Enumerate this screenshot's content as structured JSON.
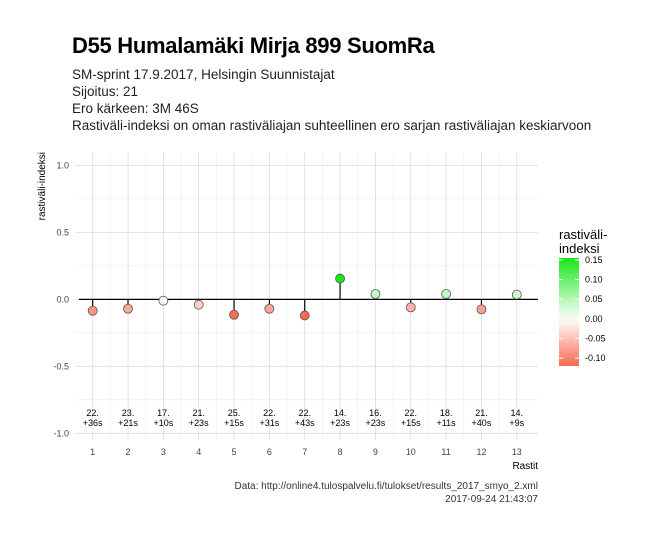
{
  "header": {
    "title": "D55 Humalamäki Mirja 899 SuomRa",
    "subtitle_lines": [
      "SM-sprint 17.9.2017, Helsingin Suunnistajat",
      "Sijoitus: 21",
      "Ero kärkeen: 3M 46S",
      "Rastiväli-indeksi on oman rastiväliajan suhteellinen ero sarjan rastiväliajan keskiarvoon"
    ]
  },
  "caption": {
    "source": "Data: http://online4.tulospalvelu.fi/tulokset/results_2017_smyo_2.xml",
    "timestamp": "2017-09-24 21:43:07"
  },
  "chart_data": {
    "type": "scatter",
    "xlabel": "Rastit",
    "ylabel": "rastiväli-indeksi",
    "x": [
      1,
      2,
      3,
      4,
      5,
      6,
      7,
      8,
      9,
      10,
      11,
      12,
      13
    ],
    "values": [
      -0.085,
      -0.07,
      -0.01,
      -0.04,
      -0.115,
      -0.07,
      -0.12,
      0.155,
      0.04,
      -0.06,
      0.04,
      -0.075,
      0.035
    ],
    "annotations": [
      [
        "22.",
        "+36s"
      ],
      [
        "23.",
        "+21s"
      ],
      [
        "17.",
        "+10s"
      ],
      [
        "21.",
        "+23s"
      ],
      [
        "25.",
        "+15s"
      ],
      [
        "22.",
        "+31s"
      ],
      [
        "22.",
        "+43s"
      ],
      [
        "14.",
        "+23s"
      ],
      [
        "16.",
        "+23s"
      ],
      [
        "22.",
        "+15s"
      ],
      [
        "18.",
        "+11s"
      ],
      [
        "21.",
        "+40s"
      ],
      [
        "14.",
        "+9s"
      ]
    ],
    "ylim": [
      -1.05,
      1.1
    ],
    "yticks": [
      -1.0,
      -0.5,
      0.0,
      0.5,
      1.0
    ],
    "ytick_labels": [
      "-1.0",
      "-0.5",
      "0.0",
      "0.5",
      "1.0"
    ],
    "xlim": [
      0.5,
      13.6
    ],
    "grid": true,
    "legend": {
      "title": "rastiväli-\nindeksi",
      "position": "right",
      "range": [
        -0.12,
        0.155
      ],
      "ticks": [
        0.15,
        0.1,
        0.05,
        0.0,
        -0.05,
        -0.1
      ],
      "tick_labels": [
        "0.15",
        "0.10",
        "0.05",
        "0.00",
        "-0.05",
        "-0.10"
      ],
      "colors": {
        "low": "#f8694f",
        "mid": "#ffffff",
        "high": "#17e617"
      }
    }
  }
}
